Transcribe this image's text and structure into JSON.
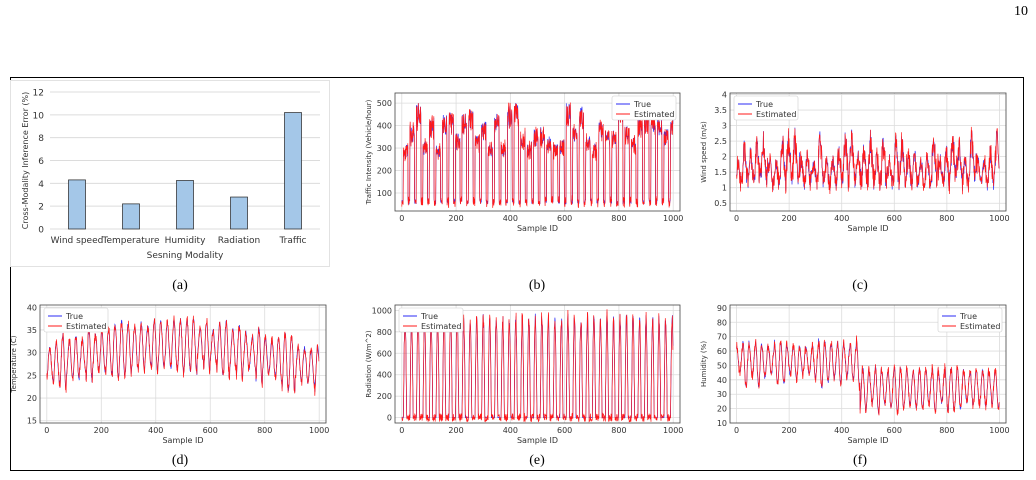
{
  "page_number": "10",
  "captions": [
    "(a)",
    "(b)",
    "(c)",
    "(d)",
    "(e)",
    "(f)"
  ],
  "colors": {
    "true": "#2b2bf5",
    "estimated": "#ff1a1a",
    "bar": "#a4c7e8",
    "grid": "#dcdcdc"
  },
  "chart_data": [
    {
      "type": "bar",
      "panel": "a",
      "categories": [
        "Wind speed",
        "Temperature",
        "Humidity",
        "Radiation",
        "Traffic"
      ],
      "values": [
        4.3,
        2.2,
        4.25,
        2.8,
        10.2
      ],
      "xlabel": "Sesning Modality",
      "ylabel": "Cross-Modality Inference Error (%)",
      "ylim": [
        0,
        12
      ],
      "yticks": [
        0,
        2,
        4,
        6,
        8,
        10,
        12
      ],
      "grid": true
    },
    {
      "type": "line",
      "panel": "b",
      "xlabel": "Sample ID",
      "ylabel": "Traffic Intensity (Vehicle/hour)",
      "xlim": [
        -25,
        1025
      ],
      "ylim": [
        20,
        545
      ],
      "xticks": [
        0,
        200,
        400,
        600,
        800,
        1000
      ],
      "yticks": [
        100,
        200,
        300,
        400,
        500
      ],
      "legend": "upper right",
      "legend_labels": [
        "True",
        "Estimated"
      ],
      "signal": {
        "period": 24,
        "kind": "traffic",
        "min": 40,
        "max": 500
      }
    },
    {
      "type": "line",
      "panel": "c",
      "xlabel": "Sample ID",
      "ylabel": "Wind speed (m/s)",
      "xlim": [
        -25,
        1025
      ],
      "ylim": [
        0.25,
        4.05
      ],
      "xticks": [
        0,
        200,
        400,
        600,
        800,
        1000
      ],
      "yticks": [
        0.5,
        1.0,
        1.5,
        2.0,
        2.5,
        3.0,
        3.5,
        4.0
      ],
      "legend": "upper left",
      "legend_labels": [
        "True",
        "Estimated"
      ],
      "signal": {
        "period": 24,
        "kind": "wind",
        "min": 0.35,
        "max": 3.85
      }
    },
    {
      "type": "line",
      "panel": "d",
      "xlabel": "Sample ID",
      "ylabel": "Temperature (C)",
      "xlim": [
        -25,
        1025
      ],
      "ylim": [
        14.5,
        40.5
      ],
      "xticks": [
        0,
        200,
        400,
        600,
        800,
        1000
      ],
      "yticks": [
        15,
        20,
        25,
        30,
        35,
        40
      ],
      "legend": "upper left",
      "legend_labels": [
        "True",
        "Estimated"
      ],
      "signal": {
        "period": 24,
        "kind": "temp",
        "min": 16,
        "max": 39
      }
    },
    {
      "type": "line",
      "panel": "e",
      "xlabel": "Sample ID",
      "ylabel": "Radiation (W/m^2)",
      "xlim": [
        -25,
        1025
      ],
      "ylim": [
        -50,
        1050
      ],
      "xticks": [
        0,
        200,
        400,
        600,
        800,
        1000
      ],
      "yticks": [
        0,
        200,
        400,
        600,
        800,
        1000
      ],
      "legend": "upper left",
      "legend_labels": [
        "True",
        "Estimated"
      ],
      "signal": {
        "period": 24,
        "kind": "rad",
        "min": 0,
        "max": 990
      }
    },
    {
      "type": "line",
      "panel": "f",
      "xlabel": "Sample ID",
      "ylabel": "Humidity (%)",
      "xlim": [
        -25,
        1025
      ],
      "ylim": [
        10,
        92
      ],
      "xticks": [
        0,
        200,
        400,
        600,
        800,
        1000
      ],
      "yticks": [
        10,
        20,
        30,
        40,
        50,
        60,
        70,
        80,
        90
      ],
      "legend": "upper right",
      "legend_labels": [
        "True",
        "Estimated"
      ],
      "signal": {
        "period": 24,
        "kind": "hum",
        "min": 15,
        "max": 88
      }
    }
  ]
}
